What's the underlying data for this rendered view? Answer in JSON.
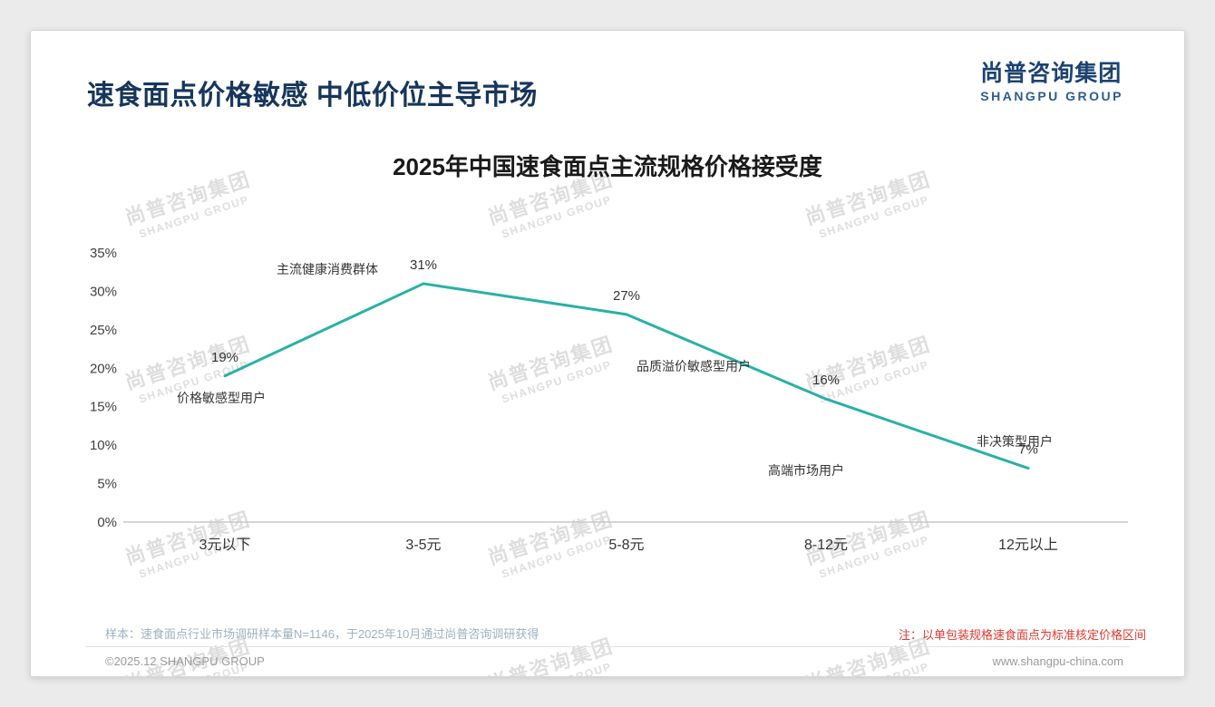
{
  "page": {
    "title": "速食面点价格敏感 中低价位主导市场",
    "logo": {
      "cn": "尚普咨询集团",
      "en": "SHANGPU GROUP"
    }
  },
  "watermark": {
    "cn": "尚普咨询集团",
    "en": "SHANGPU GROUP"
  },
  "chart_data": {
    "type": "line",
    "title": "2025年中国速食面点主流规格价格接受度",
    "categories": [
      "3元以下",
      "3-5元",
      "5-8元",
      "8-12元",
      "12元以上"
    ],
    "values": [
      19,
      31,
      27,
      16,
      7
    ],
    "value_labels": [
      "19%",
      "31%",
      "27%",
      "16%",
      "7%"
    ],
    "ylim": [
      0,
      35
    ],
    "ytick_step": 5,
    "ytick_labels": [
      "0%",
      "5%",
      "10%",
      "15%",
      "20%",
      "25%",
      "30%",
      "35%"
    ],
    "line_color": "#29b1a7",
    "grid": "off",
    "legend": "none",
    "annotations": [
      "价格敏感型用户",
      "主流健康消费群体",
      "品质溢价敏感型用户",
      "高端市场用户",
      "非决策型用户"
    ]
  },
  "footnotes": {
    "sample": "样本：速食面点行业市场调研样本量N=1146，于2025年10月通过尚普咨询调研获得",
    "note": "注：以单包装规格速食面点为标准核定价格区间"
  },
  "footer": {
    "copyright": "©2025.12 SHANGPU GROUP",
    "website": "www.shangpu-china.com"
  }
}
